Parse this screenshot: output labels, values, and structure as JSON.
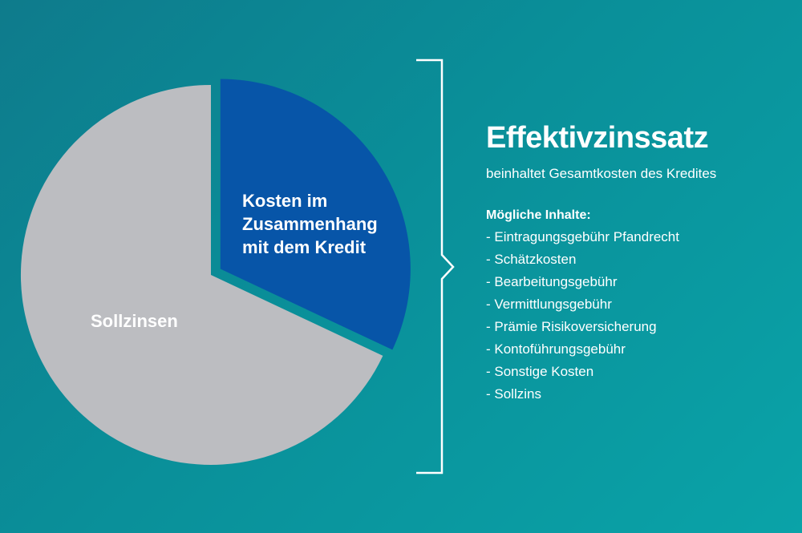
{
  "chart_data": {
    "type": "pie",
    "slices": [
      {
        "label": "Kosten im Zusammenhang mit dem Kredit",
        "label_lines": [
          "Kosten im",
          "Zusammenhang",
          "mit dem Kredit"
        ],
        "share": 0.32,
        "color": "#0755a8",
        "exploded": true
      },
      {
        "label": "Sollzinsen",
        "label_lines": [
          "Sollzinsen"
        ],
        "share": 0.68,
        "color": "#bcbdc1",
        "exploded": false
      }
    ]
  },
  "bracket_color": "#ffffff",
  "panel": {
    "title": "Effektivzinssatz",
    "subtitle": "beinhaltet Gesamtkosten des Kredites",
    "list_heading": "Mögliche Inhalte:",
    "items": [
      "- Eintragungsgebühr Pfandrecht",
      "- Schätzkosten",
      "- Bearbeitungsgebühr",
      "- Vermittlungsgebühr",
      "- Prämie Risikoversicherung",
      "- Kontoführungsgebühr",
      "- Sonstige Kosten",
      "- Sollzins"
    ]
  }
}
